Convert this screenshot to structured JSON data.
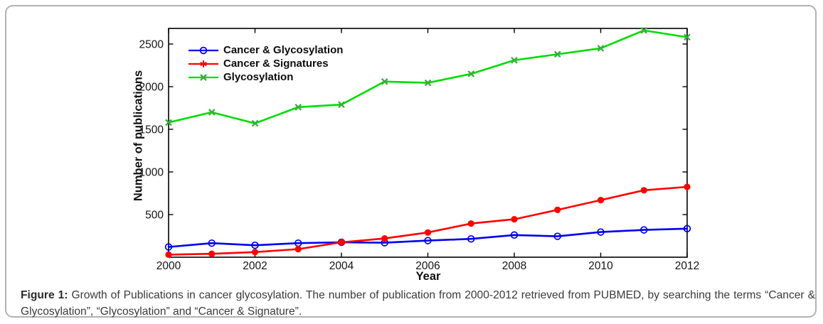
{
  "figure": {
    "caption_label": "Figure 1:",
    "caption_text": "Growth of Publications in cancer glycosylation. The number of publication from 2000-2012 retrieved from PUBMED, by searching the terms “Cancer & Glycosylation”, “Glycosylation” and “Cancer & Signature”."
  },
  "chart_data": {
    "type": "line",
    "title": "",
    "xlabel": "Year",
    "ylabel": "Number of publications",
    "grid": false,
    "legend_position": "top-left-inside",
    "xlim": [
      2000,
      2012
    ],
    "ylim": [
      0,
      2683
    ],
    "xticks": [
      2000,
      2002,
      2004,
      2006,
      2008,
      2010,
      2012
    ],
    "yticks": [
      500,
      1000,
      1500,
      2000,
      2500
    ],
    "x": [
      2000,
      2001,
      2002,
      2003,
      2004,
      2005,
      2006,
      2007,
      2008,
      2009,
      2010,
      2011,
      2012
    ],
    "series": [
      {
        "name": "Cancer & Glycosylation",
        "color": "#0000EE",
        "marker": "circle-open",
        "values": [
          120,
          165,
          140,
          165,
          175,
          170,
          195,
          215,
          260,
          245,
          295,
          320,
          335
        ]
      },
      {
        "name": "Cancer & Signatures",
        "color": "#FF0000",
        "marker": "dot",
        "legend_marker": "asterisk",
        "values": [
          30,
          40,
          60,
          95,
          175,
          220,
          290,
          395,
          445,
          555,
          670,
          785,
          825
        ]
      },
      {
        "name": "Glycosylation",
        "color": "#00DC00",
        "marker": "x",
        "marker_color": "#3DA83D",
        "values": [
          1580,
          1700,
          1570,
          1760,
          1790,
          2060,
          2045,
          2150,
          2310,
          2380,
          2450,
          2660,
          2580
        ]
      }
    ]
  }
}
